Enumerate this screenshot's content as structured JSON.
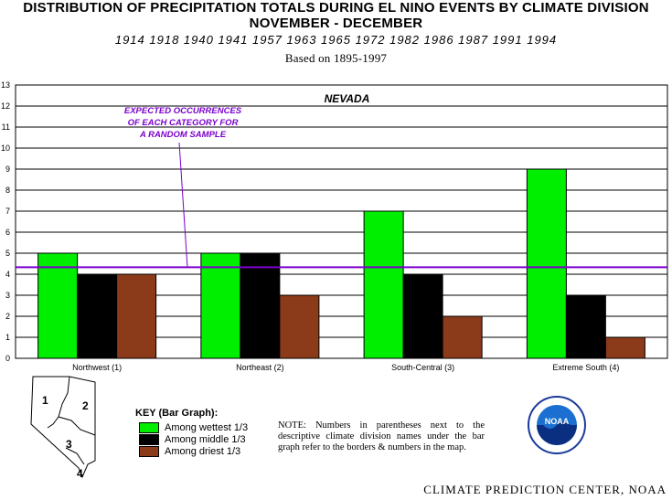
{
  "header": {
    "title_line1": "DISTRIBUTION OF PRECIPITATION TOTALS DURING EL NINO EVENTS BY CLIMATE DIVISION",
    "title_line2": "NOVEMBER - DECEMBER",
    "years": "1914 1918 1940 1941 1957 1963 1965 1972 1982 1986 1987 1991 1994",
    "basis": "Based on 1895-1997"
  },
  "chart_data": {
    "type": "bar",
    "title": "NEVADA",
    "categories": [
      "Northwest (1)",
      "Northeast (2)",
      "South-Central (3)",
      "Extreme South (4)"
    ],
    "series": [
      {
        "name": "Among wettest 1/3",
        "color": "#00ee00",
        "values": [
          5,
          5,
          7,
          9
        ]
      },
      {
        "name": "Among middle 1/3",
        "color": "#000000",
        "values": [
          4,
          5,
          4,
          3
        ]
      },
      {
        "name": "Among driest 1/3",
        "color": "#8b3a1a",
        "values": [
          4,
          3,
          2,
          1
        ]
      }
    ],
    "ylim": [
      0,
      13
    ],
    "yticks": [
      0,
      1,
      2,
      3,
      4,
      5,
      6,
      7,
      8,
      9,
      10,
      11,
      12,
      13
    ],
    "grid": true,
    "reference_line": {
      "value": 4.33,
      "color": "#7b00cc",
      "label_lines": [
        "EXPECTED OCCURRENCES",
        "OF EACH CATEGORY FOR",
        "A RANDOM SAMPLE"
      ]
    }
  },
  "key": {
    "title": "KEY (Bar Graph):",
    "items": [
      {
        "label": "Among wettest 1/3",
        "color": "#00ee00"
      },
      {
        "label": "Among middle 1/3",
        "color": "#000000"
      },
      {
        "label": "Among driest 1/3",
        "color": "#8b3a1a"
      }
    ]
  },
  "note": "NOTE:  Numbers in parentheses next to the descriptive climate division names under the bar graph refer to the borders & numbers in the map.",
  "map": {
    "division_numbers": [
      "1",
      "2",
      "3",
      "4"
    ]
  },
  "logo": {
    "text": "NOAA",
    "icon": "noaa-logo-icon"
  },
  "credit": "CLIMATE PREDICTION CENTER, NOAA"
}
